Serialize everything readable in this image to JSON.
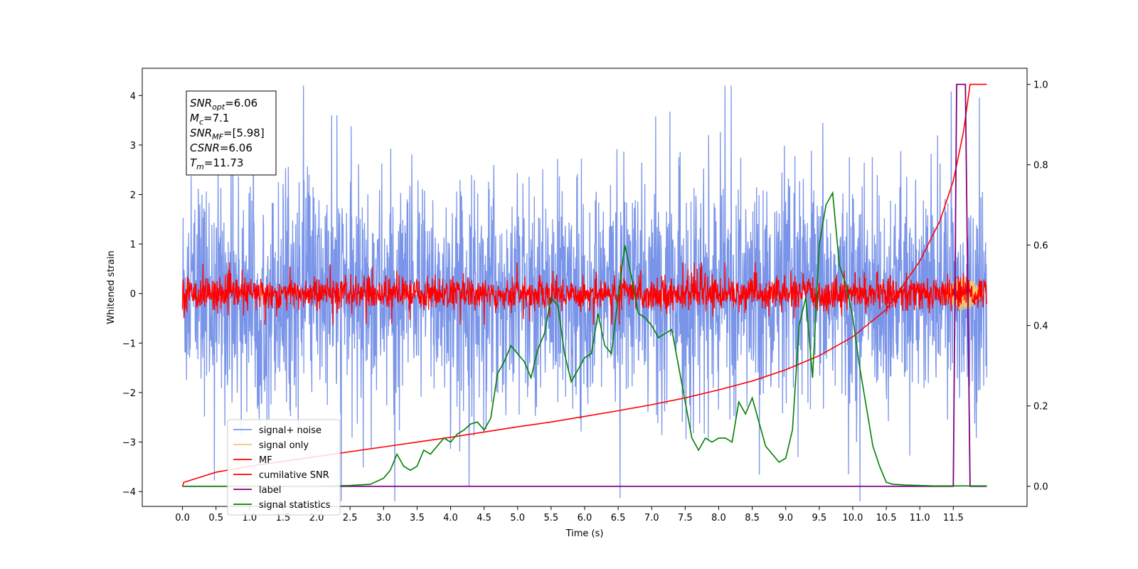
{
  "chart_data": {
    "type": "line",
    "xlabel": "Time (s)",
    "ylabel": "Whitened strain",
    "xlim": [
      -0.6,
      12.6
    ],
    "ylim": [
      -4.3,
      4.55
    ],
    "y2lim": [
      -0.05,
      1.04
    ],
    "x_ticks": [
      "0.0",
      "0.5",
      "1.0",
      "1.5",
      "2.0",
      "2.5",
      "3.0",
      "3.5",
      "4.0",
      "4.5",
      "5.0",
      "5.5",
      "6.0",
      "6.5",
      "7.0",
      "7.5",
      "8.0",
      "8.5",
      "9.0",
      "9.5",
      "10.0",
      "10.5",
      "11.0",
      "11.5"
    ],
    "y_ticks": [
      "4",
      "3",
      "2",
      "1",
      "0",
      "−1",
      "−2",
      "−3",
      "−4"
    ],
    "y2_ticks": [
      "1.0",
      "0.8",
      "0.6",
      "0.4",
      "0.2",
      "0.0"
    ],
    "legend_position": "lower-left",
    "annotation": {
      "lines": [
        {
          "name": "SNR",
          "sub": "opt",
          "value": "=6.06"
        },
        {
          "name": "M",
          "sub": "c",
          "value": "=7.1"
        },
        {
          "name": "SNR",
          "sub": "MF",
          "value": "=[5.98]"
        },
        {
          "name": "CSNR",
          "sub": "",
          "value": "=6.06"
        },
        {
          "name": "T",
          "sub": "m",
          "value": "=11.73"
        }
      ]
    },
    "series": [
      {
        "name": "signal+ noise",
        "color": "#7994e8",
        "axis": "left",
        "description": "noisy whitened strain, envelope about ±2 with spikes",
        "x_range": [
          0.0,
          12.0
        ],
        "envelope": 2.0
      },
      {
        "name": "signal only",
        "color": "#f5c969",
        "axis": "left",
        "x_range": [
          0.0,
          12.0
        ]
      },
      {
        "name": "MF",
        "color": "#ff0000",
        "axis": "left",
        "x_range": [
          0.0,
          12.0
        ],
        "envelope": 0.3
      },
      {
        "name": "cumilative SNR",
        "color": "#ff0000",
        "axis": "right",
        "x": [
          0.0,
          0.02,
          0.5,
          1.0,
          1.5,
          2.0,
          2.5,
          3.0,
          3.5,
          4.0,
          4.5,
          5.0,
          5.5,
          6.0,
          6.5,
          7.0,
          7.5,
          8.0,
          8.5,
          9.0,
          9.5,
          10.0,
          10.5,
          11.0,
          11.3,
          11.5,
          11.65,
          11.75,
          11.9,
          12.0
        ],
        "y": [
          0.0,
          0.01,
          0.035,
          0.05,
          0.062,
          0.074,
          0.086,
          0.098,
          0.11,
          0.122,
          0.135,
          0.148,
          0.16,
          0.174,
          0.188,
          0.203,
          0.22,
          0.24,
          0.262,
          0.29,
          0.325,
          0.372,
          0.44,
          0.56,
          0.66,
          0.76,
          0.88,
          1.0,
          1.0,
          1.0
        ]
      },
      {
        "name": "label",
        "color": "#800080",
        "axis": "right",
        "x": [
          0.0,
          11.5,
          11.55,
          11.62,
          11.68,
          11.75,
          11.82,
          12.0
        ],
        "y": [
          0.0,
          0.0,
          1.0,
          1.0,
          1.0,
          0.0,
          0.0,
          0.0
        ]
      },
      {
        "name": "signal statistics",
        "color": "#008000",
        "axis": "right",
        "x": [
          0.0,
          2.0,
          2.5,
          2.8,
          3.0,
          3.1,
          3.2,
          3.3,
          3.4,
          3.5,
          3.6,
          3.7,
          3.8,
          3.9,
          4.0,
          4.1,
          4.2,
          4.3,
          4.4,
          4.5,
          4.6,
          4.7,
          4.8,
          4.9,
          5.0,
          5.1,
          5.2,
          5.3,
          5.4,
          5.5,
          5.6,
          5.7,
          5.8,
          5.9,
          6.0,
          6.1,
          6.2,
          6.3,
          6.4,
          6.5,
          6.6,
          6.7,
          6.8,
          6.9,
          7.0,
          7.1,
          7.2,
          7.3,
          7.4,
          7.5,
          7.6,
          7.7,
          7.8,
          7.9,
          8.0,
          8.1,
          8.2,
          8.3,
          8.4,
          8.5,
          8.6,
          8.7,
          8.8,
          8.9,
          9.0,
          9.1,
          9.2,
          9.3,
          9.4,
          9.5,
          9.6,
          9.7,
          9.8,
          9.9,
          10.0,
          10.1,
          10.2,
          10.3,
          10.4,
          10.5,
          10.6,
          10.8,
          11.0,
          11.2,
          11.5,
          11.8,
          12.0
        ],
        "y": [
          0.0,
          0.0,
          0.002,
          0.005,
          0.02,
          0.04,
          0.08,
          0.05,
          0.04,
          0.05,
          0.09,
          0.08,
          0.1,
          0.12,
          0.11,
          0.13,
          0.14,
          0.155,
          0.16,
          0.14,
          0.17,
          0.28,
          0.31,
          0.35,
          0.33,
          0.31,
          0.27,
          0.34,
          0.38,
          0.47,
          0.45,
          0.33,
          0.26,
          0.29,
          0.32,
          0.33,
          0.43,
          0.35,
          0.33,
          0.47,
          0.6,
          0.52,
          0.43,
          0.42,
          0.4,
          0.37,
          0.38,
          0.39,
          0.3,
          0.21,
          0.12,
          0.09,
          0.12,
          0.11,
          0.12,
          0.12,
          0.11,
          0.21,
          0.18,
          0.22,
          0.16,
          0.1,
          0.08,
          0.06,
          0.07,
          0.14,
          0.4,
          0.47,
          0.27,
          0.6,
          0.7,
          0.73,
          0.55,
          0.5,
          0.42,
          0.3,
          0.2,
          0.1,
          0.05,
          0.01,
          0.005,
          0.003,
          0.002,
          0.001,
          0.001,
          0.001,
          0.001
        ]
      }
    ]
  }
}
